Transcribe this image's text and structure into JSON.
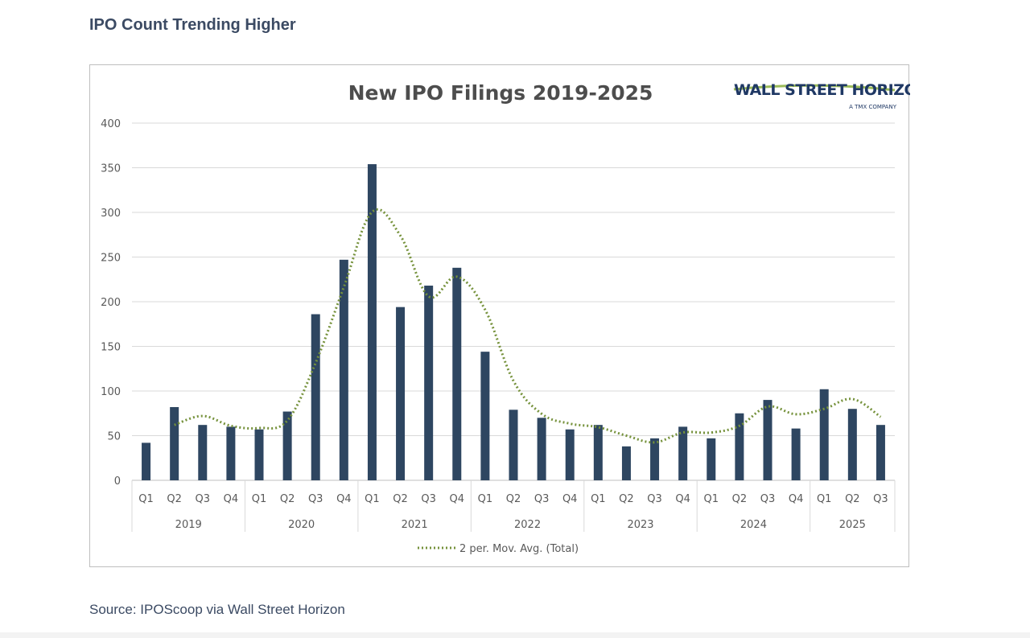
{
  "page": {
    "heading": "IPO Count Trending Higher",
    "source": "Source: IPOScoop via Wall Street Horizon"
  },
  "logo": {
    "name": "WALL STREET HORIZON",
    "tagline": "A TMX COMPANY"
  },
  "colors": {
    "bar": "#2e4661",
    "moving_avg": "#76923c",
    "grid": "#d9d9d9",
    "heading": "#3b4a63"
  },
  "chart_data": {
    "type": "bar",
    "title": "New IPO Filings 2019-2025",
    "xlabel": "",
    "ylabel": "",
    "ylim": [
      0,
      400
    ],
    "yticks": [
      0,
      50,
      100,
      150,
      200,
      250,
      300,
      350,
      400
    ],
    "grid": true,
    "legend_position": "bottom",
    "categories": [
      "Q1",
      "Q2",
      "Q3",
      "Q4",
      "Q1",
      "Q2",
      "Q3",
      "Q4",
      "Q1",
      "Q2",
      "Q3",
      "Q4",
      "Q1",
      "Q2",
      "Q3",
      "Q4",
      "Q1",
      "Q2",
      "Q3",
      "Q4",
      "Q1",
      "Q2",
      "Q3",
      "Q4",
      "Q1",
      "Q2",
      "Q3"
    ],
    "year_groups": [
      {
        "label": "2019",
        "count": 4
      },
      {
        "label": "2020",
        "count": 4
      },
      {
        "label": "2021",
        "count": 4
      },
      {
        "label": "2022",
        "count": 4
      },
      {
        "label": "2023",
        "count": 4
      },
      {
        "label": "2024",
        "count": 4
      },
      {
        "label": "2025",
        "count": 3
      }
    ],
    "series": [
      {
        "values": [
          42,
          82,
          62,
          60,
          57,
          77,
          186,
          247,
          354,
          194,
          218,
          238,
          144,
          79,
          70,
          57,
          62,
          38,
          47,
          60,
          47,
          75,
          90,
          58,
          102,
          80,
          62
        ]
      }
    ],
    "trendline": {
      "name": "2 per. Mov. Avg. (Total)",
      "values": [
        null,
        62,
        72,
        61,
        58.5,
        67,
        131.5,
        216.5,
        300.5,
        274,
        206,
        228,
        191,
        111.5,
        74.5,
        63.5,
        59.5,
        50,
        42.5,
        53.5,
        53.5,
        61,
        82.5,
        74,
        80,
        91,
        71
      ]
    }
  }
}
